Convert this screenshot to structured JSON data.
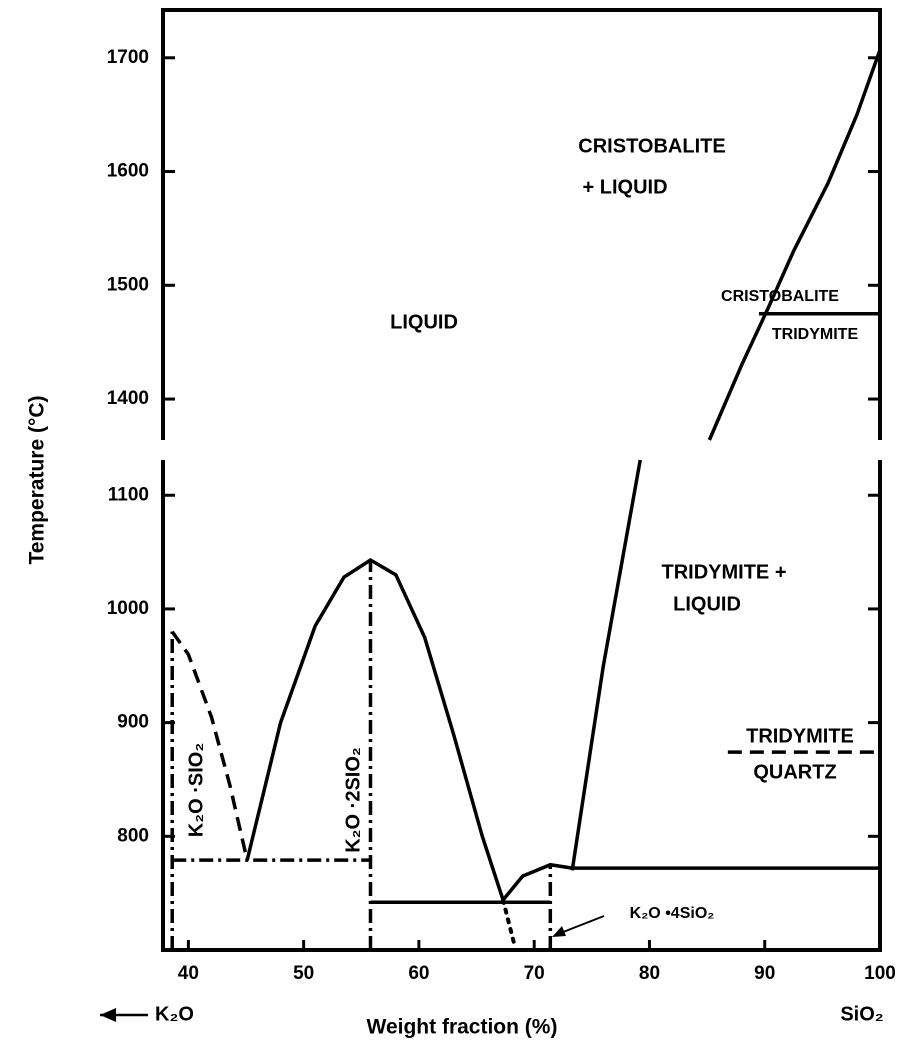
{
  "chart_data": {
    "type": "line",
    "xlabel": "Weight fraction (%)",
    "ylabel": "Temperature (°C)",
    "xlim": [
      37.8,
      100
    ],
    "xticks": [
      40,
      50,
      60,
      70,
      80,
      90,
      100
    ],
    "panels": [
      {
        "ylim": [
          1364,
          1742
        ],
        "yticks": [
          1400,
          1500,
          1600,
          1700
        ]
      },
      {
        "ylim": [
          700,
          1131
        ],
        "yticks": [
          800,
          900,
          1000,
          1100
        ]
      }
    ],
    "color": "#000000",
    "series": [
      {
        "panel": 1,
        "style": "dashed",
        "x": [
          38.6,
          40,
          42,
          43.6,
          45.1
        ],
        "values": [
          980,
          960,
          905,
          845,
          779
        ]
      },
      {
        "panel": 1,
        "style": "solid",
        "x": [
          45.1,
          48,
          51,
          53.5,
          55.8,
          58,
          60.5,
          63,
          65.5,
          67.3
        ],
        "values": [
          779,
          900,
          985,
          1028,
          1043,
          1030,
          975,
          890,
          800,
          744
        ]
      },
      {
        "panel": 1,
        "style": "dotted",
        "x": [
          67.3,
          68.3
        ],
        "values": [
          744,
          704
        ]
      },
      {
        "panel": 1,
        "style": "solid",
        "x": [
          67.3,
          69,
          71.4,
          73.3
        ],
        "values": [
          744,
          765,
          775,
          772
        ]
      },
      {
        "panel": 1,
        "style": "solid",
        "x": [
          73.3,
          76,
          79.2
        ],
        "values": [
          770,
          950,
          1131
        ]
      },
      {
        "panel": 0,
        "style": "solid",
        "x": [
          85.2,
          88,
          90.3,
          92.5,
          95.5,
          98,
          100
        ],
        "values": [
          1364,
          1430,
          1480,
          1530,
          1590,
          1650,
          1707
        ]
      },
      {
        "panel": 1,
        "style": "solid",
        "x": [
          73.3,
          100
        ],
        "values": [
          772,
          772
        ]
      },
      {
        "panel": 1,
        "style": "dashdot",
        "x": [
          38.6,
          55.8
        ],
        "values": [
          779,
          779
        ]
      },
      {
        "panel": 1,
        "style": "solid",
        "x": [
          55.8,
          71.4
        ],
        "values": [
          742,
          742
        ]
      },
      {
        "panel": 1,
        "style": "dashdot",
        "x": [
          38.6,
          38.6
        ],
        "values": [
          700,
          980
        ]
      },
      {
        "panel": 1,
        "style": "dashdot",
        "x": [
          55.8,
          55.8
        ],
        "values": [
          700,
          1043
        ]
      },
      {
        "panel": 1,
        "style": "dashdot",
        "x": [
          71.4,
          71.4
        ],
        "values": [
          700,
          775
        ]
      },
      {
        "panel": 0,
        "style": "solid",
        "x": [
          89.5,
          100
        ],
        "values": [
          1475,
          1475
        ]
      },
      {
        "panel": 1,
        "style": "dashed",
        "x": [
          86.8,
          100
        ],
        "values": [
          874,
          874
        ]
      }
    ],
    "annotations": [
      "CRISTOBALITE",
      "+ LIQUID",
      "LIQUID",
      "CRISTOBALITE",
      "TRIDYMITE",
      "TRIDYMITE +",
      "LIQUID",
      "TRIDYMITE",
      "QUARTZ",
      "K₂O ·SIO₂",
      "K₂O ·2SIO₂",
      "K₂O •4SiO₂"
    ],
    "left_label": "K₂O",
    "right_label": "SiO₂"
  }
}
